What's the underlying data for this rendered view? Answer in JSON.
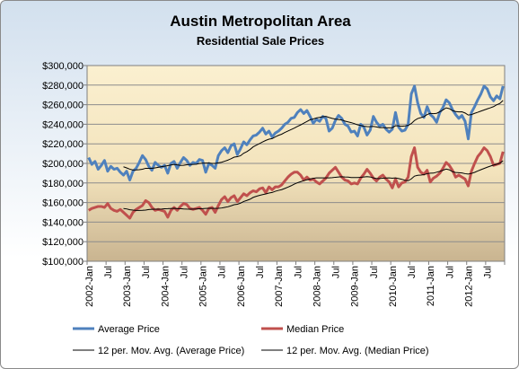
{
  "chart_data": {
    "type": "line",
    "title": "Austin Metropolitan Area",
    "subtitle": "Residential Sale Prices",
    "xlabel": "",
    "ylabel": "",
    "ylim": [
      100000,
      300000
    ],
    "y_ticks": [
      100000,
      120000,
      140000,
      160000,
      180000,
      200000,
      220000,
      240000,
      260000,
      280000,
      300000
    ],
    "y_tick_labels": [
      "$100,000",
      "$120,000",
      "$140,000",
      "$160,000",
      "$180,000",
      "$200,000",
      "$220,000",
      "$240,000",
      "$260,000",
      "$280,000",
      "$300,000"
    ],
    "x_tick_labels": [
      "2002-Jan",
      "Jul",
      "2003-Jan",
      "Jul",
      "2004-Jan",
      "Jul",
      "2005-Jan",
      "Jul",
      "2006-Jan",
      "Jul",
      "2007-Jan",
      "Jul",
      "2008-Jan",
      "Jul",
      "2009-Jan",
      "Jul",
      "2010-Jan",
      "Jul",
      "2011-Jan",
      "Jul",
      "2012-Jan",
      "Jul"
    ],
    "x_start": "2002-01",
    "x_end": "2012-12",
    "grid": true,
    "legend_position": "bottom",
    "series": [
      {
        "name": "Average Price",
        "color": "#4f81bd",
        "values": [
          206000,
          199000,
          202000,
          194000,
          198000,
          203000,
          192000,
          197000,
          194000,
          195000,
          191000,
          188000,
          192000,
          183000,
          192000,
          195000,
          201000,
          208000,
          204000,
          197000,
          193000,
          201000,
          198000,
          196000,
          198000,
          190000,
          200000,
          202000,
          195000,
          201000,
          206000,
          203000,
          198000,
          201000,
          200000,
          204000,
          203000,
          191000,
          200000,
          198000,
          195000,
          208000,
          213000,
          216000,
          211000,
          218000,
          220000,
          209000,
          215000,
          222000,
          219000,
          224000,
          228000,
          229000,
          232000,
          236000,
          230000,
          233000,
          227000,
          231000,
          233000,
          236000,
          240000,
          242000,
          246000,
          247000,
          252000,
          255000,
          251000,
          254000,
          248000,
          241000,
          245000,
          243000,
          248000,
          246000,
          233000,
          236000,
          244000,
          249000,
          246000,
          240000,
          238000,
          232000,
          233000,
          228000,
          240000,
          237000,
          229000,
          234000,
          248000,
          242000,
          238000,
          240000,
          235000,
          232000,
          235000,
          252000,
          237000,
          233000,
          234000,
          240000,
          271000,
          279000,
          262000,
          251000,
          247000,
          258000,
          250000,
          247000,
          242000,
          252000,
          257000,
          265000,
          262000,
          255000,
          250000,
          246000,
          249000,
          243000,
          225000,
          252000,
          258000,
          265000,
          271000,
          279000,
          276000,
          268000,
          264000,
          269000,
          266000,
          279000
        ]
      },
      {
        "name": "Median Price",
        "color": "#c0504d",
        "values": [
          152000,
          154000,
          155000,
          156000,
          156000,
          155000,
          159000,
          154000,
          152000,
          151000,
          153000,
          150000,
          147000,
          144000,
          150000,
          153000,
          155000,
          157000,
          162000,
          160000,
          155000,
          152000,
          153000,
          152000,
          151000,
          145000,
          152000,
          155000,
          152000,
          156000,
          159000,
          158000,
          154000,
          153000,
          154000,
          155000,
          152000,
          148000,
          154000,
          155000,
          150000,
          157000,
          163000,
          166000,
          161000,
          165000,
          167000,
          161000,
          165000,
          169000,
          167000,
          170000,
          172000,
          171000,
          174000,
          175000,
          170000,
          176000,
          173000,
          176000,
          176000,
          178000,
          182000,
          186000,
          189000,
          191000,
          191000,
          188000,
          183000,
          186000,
          183000,
          184000,
          181000,
          179000,
          182000,
          185000,
          190000,
          193000,
          196000,
          191000,
          186000,
          183000,
          182000,
          179000,
          180000,
          179000,
          185000,
          189000,
          194000,
          190000,
          185000,
          182000,
          186000,
          188000,
          184000,
          181000,
          175000,
          184000,
          176000,
          180000,
          181000,
          186000,
          207000,
          216000,
          196000,
          191000,
          189000,
          193000,
          181000,
          185000,
          187000,
          190000,
          195000,
          201000,
          198000,
          193000,
          186000,
          188000,
          186000,
          184000,
          177000,
          192000,
          200000,
          207000,
          211000,
          216000,
          213000,
          207000,
          198000,
          199000,
          200000,
          212000
        ]
      },
      {
        "name": "12 per. Mov. Avg. (Average Price)",
        "color": "#000000",
        "moving_average_of": "Average Price",
        "period": 12
      },
      {
        "name": "12 per. Mov. Avg. (Median Price)",
        "color": "#000000",
        "moving_average_of": "Median Price",
        "period": 12
      }
    ]
  }
}
